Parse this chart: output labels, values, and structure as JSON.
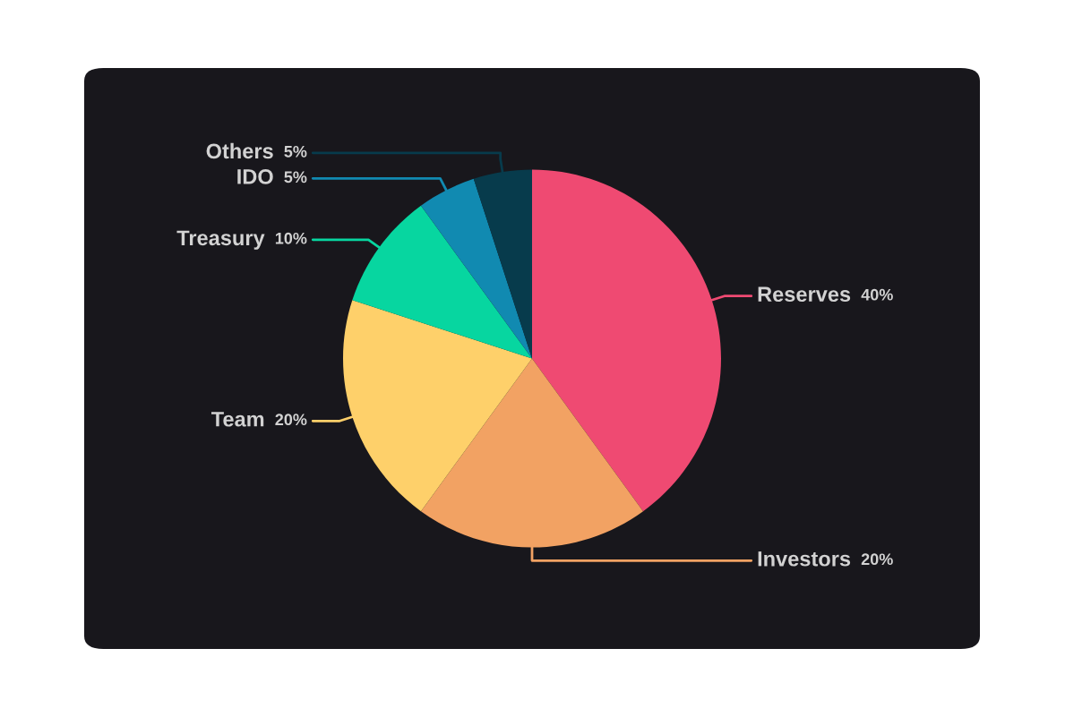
{
  "chart_data": {
    "type": "pie",
    "categories": [
      "Reserves",
      "Investors",
      "Team",
      "Treasury",
      "IDO",
      "Others"
    ],
    "values": [
      40,
      20,
      20,
      10,
      5,
      5
    ],
    "colors": [
      "#ef4a72",
      "#f2a263",
      "#fed06a",
      "#07d6a0",
      "#118ab1",
      "#073b4c"
    ],
    "value_labels": [
      "40%",
      "20%",
      "20%",
      "10%",
      "5%",
      "5%"
    ]
  }
}
